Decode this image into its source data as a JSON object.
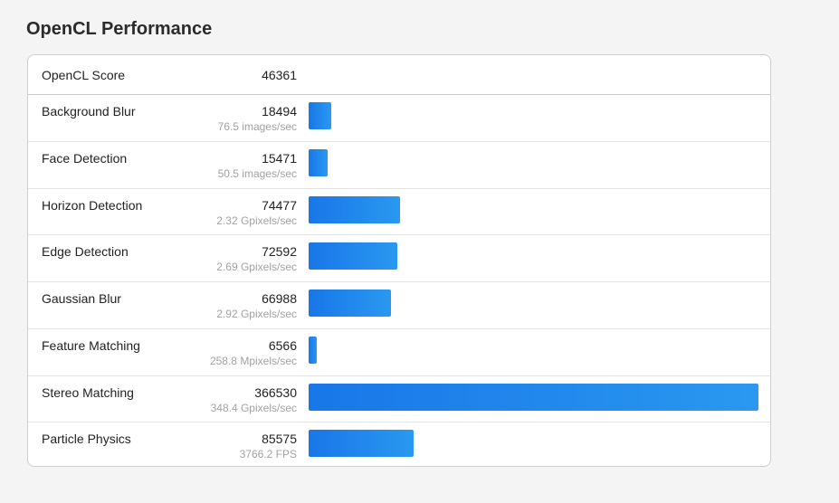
{
  "page": {
    "title": "OpenCL Performance"
  },
  "score": {
    "label": "OpenCL Score",
    "value": "46361"
  },
  "bar_max": 366530,
  "colors": {
    "bar_start": "#1877e8",
    "bar_end": "#2a98f0"
  },
  "tests": [
    {
      "name": "Background Blur",
      "score": 18494,
      "score_text": "18494",
      "rate": "76.5 images/sec"
    },
    {
      "name": "Face Detection",
      "score": 15471,
      "score_text": "15471",
      "rate": "50.5 images/sec"
    },
    {
      "name": "Horizon Detection",
      "score": 74477,
      "score_text": "74477",
      "rate": "2.32 Gpixels/sec"
    },
    {
      "name": "Edge Detection",
      "score": 72592,
      "score_text": "72592",
      "rate": "2.69 Gpixels/sec"
    },
    {
      "name": "Gaussian Blur",
      "score": 66988,
      "score_text": "66988",
      "rate": "2.92 Gpixels/sec"
    },
    {
      "name": "Feature Matching",
      "score": 6566,
      "score_text": "6566",
      "rate": "258.8 Mpixels/sec"
    },
    {
      "name": "Stereo Matching",
      "score": 366530,
      "score_text": "366530",
      "rate": "348.4 Gpixels/sec"
    },
    {
      "name": "Particle Physics",
      "score": 85575,
      "score_text": "85575",
      "rate": "3766.2 FPS"
    }
  ]
}
